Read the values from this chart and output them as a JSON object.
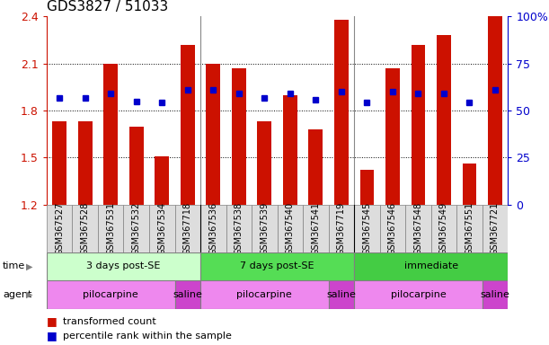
{
  "title": "GDS3827 / 51033",
  "samples": [
    "GSM367527",
    "GSM367528",
    "GSM367531",
    "GSM367532",
    "GSM367534",
    "GSM367718",
    "GSM367536",
    "GSM367538",
    "GSM367539",
    "GSM367540",
    "GSM367541",
    "GSM367719",
    "GSM367545",
    "GSM367546",
    "GSM367548",
    "GSM367549",
    "GSM367551",
    "GSM367721"
  ],
  "bar_values": [
    1.73,
    1.73,
    2.1,
    1.7,
    1.51,
    2.22,
    2.1,
    2.07,
    1.73,
    1.9,
    1.68,
    2.38,
    1.42,
    2.07,
    2.22,
    2.28,
    1.46,
    2.4
  ],
  "dot_values": [
    1.88,
    1.88,
    1.91,
    1.86,
    1.85,
    1.93,
    1.93,
    1.91,
    1.88,
    1.91,
    1.87,
    1.92,
    1.85,
    1.92,
    1.91,
    1.91,
    1.85,
    1.93
  ],
  "ylim": [
    1.2,
    2.4
  ],
  "yticks_left": [
    1.2,
    1.5,
    1.8,
    2.1,
    2.4
  ],
  "yticks_right": [
    0,
    25,
    50,
    75,
    100
  ],
  "bar_color": "#cc1100",
  "dot_color": "#0000cc",
  "background": "#ffffff",
  "grid_color": "#000000",
  "separator_color": "#888888",
  "time_groups": [
    {
      "label": "3 days post-SE",
      "start": 0,
      "end": 6,
      "color": "#ccffcc"
    },
    {
      "label": "7 days post-SE",
      "start": 6,
      "end": 12,
      "color": "#55dd55"
    },
    {
      "label": "immediate",
      "start": 12,
      "end": 18,
      "color": "#44cc44"
    }
  ],
  "agent_groups": [
    {
      "label": "pilocarpine",
      "start": 0,
      "end": 5,
      "color": "#ee88ee"
    },
    {
      "label": "saline",
      "start": 5,
      "end": 6,
      "color": "#cc44cc"
    },
    {
      "label": "pilocarpine",
      "start": 6,
      "end": 11,
      "color": "#ee88ee"
    },
    {
      "label": "saline",
      "start": 11,
      "end": 12,
      "color": "#cc44cc"
    },
    {
      "label": "pilocarpine",
      "start": 12,
      "end": 17,
      "color": "#ee88ee"
    },
    {
      "label": "saline",
      "start": 17,
      "end": 18,
      "color": "#cc44cc"
    }
  ],
  "legend_items": [
    {
      "label": "transformed count",
      "color": "#cc1100"
    },
    {
      "label": "percentile rank within the sample",
      "color": "#0000cc"
    }
  ],
  "xlabel_bg": "#dddddd",
  "group_separators": [
    5.5,
    11.5
  ]
}
